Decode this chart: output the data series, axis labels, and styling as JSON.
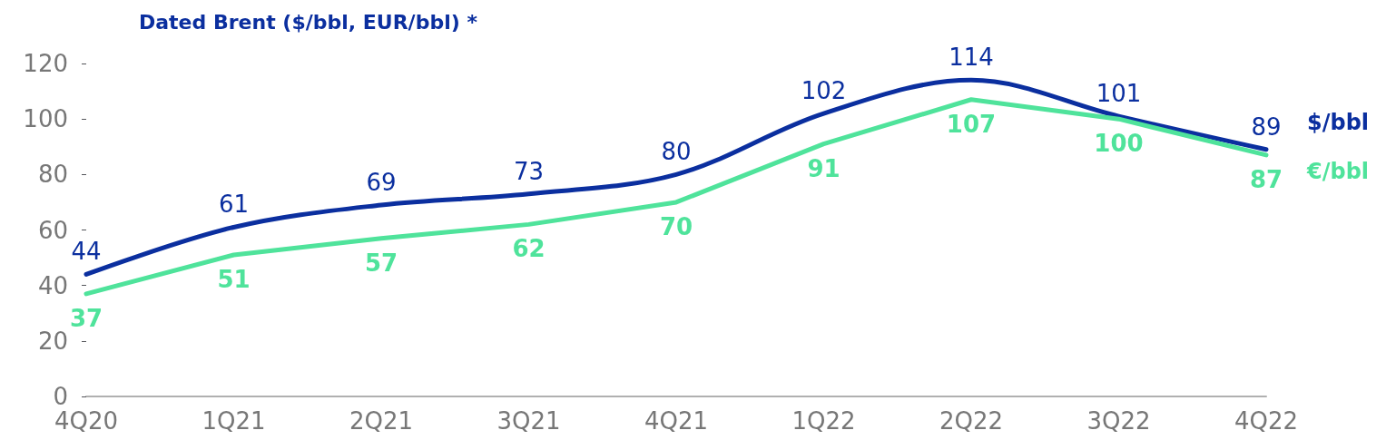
{
  "chart_data": {
    "type": "line",
    "title": "Dated Brent ($/bbl, EUR/bbl) *",
    "categories": [
      "4Q20",
      "1Q21",
      "2Q21",
      "3Q21",
      "4Q21",
      "1Q22",
      "2Q22",
      "3Q22",
      "4Q22"
    ],
    "series": [
      {
        "name": "$/bbl",
        "color": "#0b2f9f",
        "values": [
          44,
          61,
          69,
          73,
          80,
          102,
          114,
          101,
          89
        ]
      },
      {
        "name": "€/bbl",
        "color": "#4fe39b",
        "values": [
          37,
          51,
          57,
          62,
          70,
          91,
          107,
          100,
          87
        ]
      }
    ],
    "ylim": [
      0,
      120
    ],
    "yticks": [
      0,
      20,
      40,
      60,
      80,
      100,
      120
    ],
    "grid": false,
    "legend": false,
    "data_labels": true,
    "marker": "none",
    "line_style": "solid"
  }
}
